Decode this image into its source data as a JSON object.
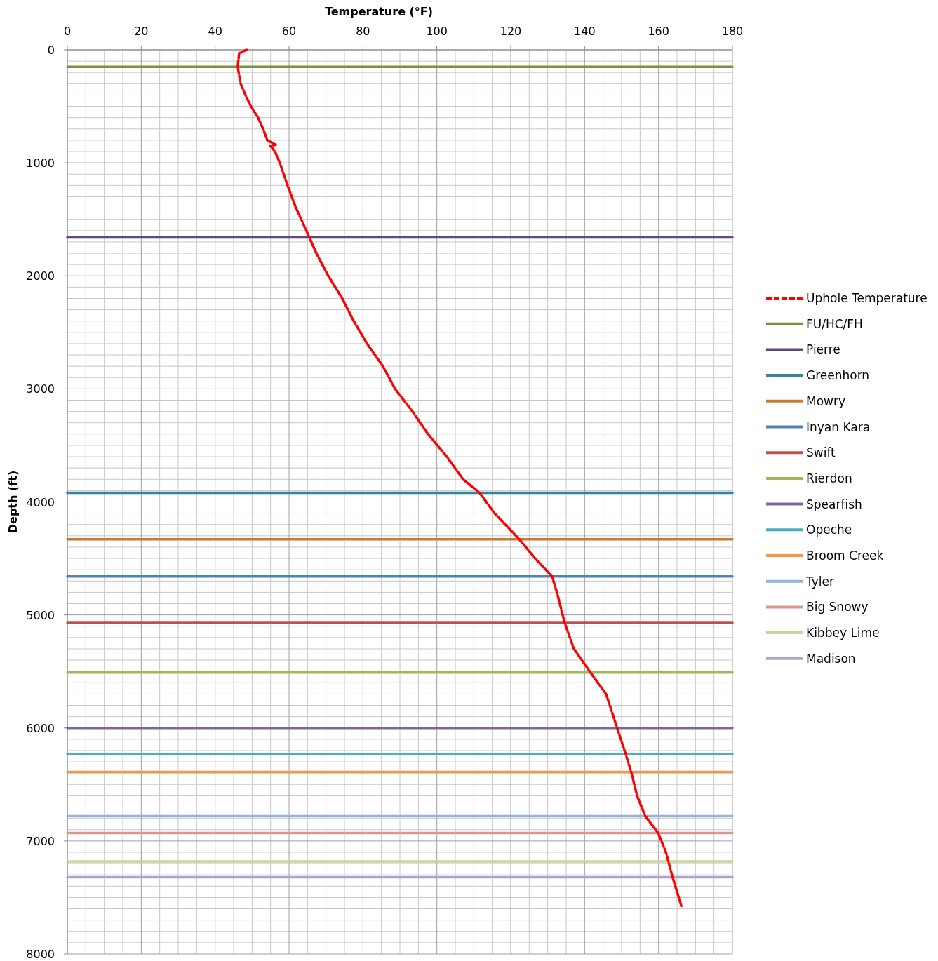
{
  "chart_data": {
    "type": "line",
    "xlabel": "Temperature (°F)",
    "ylabel": "Depth (ft)",
    "xlim": [
      0,
      180
    ],
    "xticks": [
      0,
      20,
      40,
      60,
      80,
      100,
      120,
      140,
      160,
      180
    ],
    "ylim": [
      8000,
      0
    ],
    "yticks": [
      0,
      1000,
      2000,
      3000,
      4000,
      5000,
      6000,
      7000,
      8000
    ],
    "grid": true,
    "legend": "right",
    "marker": "none",
    "series": [
      {
        "name": "Uphole Temperature",
        "color": "#ff0000",
        "line_style": "dashed",
        "x": [
          48.5,
          46.5,
          46.1,
          46.9,
          48.2,
          49.7,
          51.6,
          53,
          54.1,
          56.4,
          55,
          56.2,
          57.5,
          59.6,
          61.9,
          65.5,
          67.4,
          70.6,
          74.4,
          77.5,
          81.1,
          85.4,
          88.7,
          93.4,
          97.6,
          102.7,
          107.1,
          111.6,
          115.6,
          122.3,
          126.6,
          131.2,
          132.5,
          134.6,
          137.1,
          141.6,
          145.8,
          148.8,
          151.1,
          152.6,
          154.2,
          156.4,
          159.9,
          162,
          163.8,
          166.3
        ],
        "values": [
          0,
          30,
          150,
          300,
          400,
          500,
          600,
          700,
          800,
          840,
          850,
          900,
          1000,
          1200,
          1400,
          1660,
          1800,
          2000,
          2200,
          2400,
          2600,
          2800,
          3000,
          3200,
          3400,
          3600,
          3800,
          3920,
          4100,
          4330,
          4500,
          4660,
          4800,
          5070,
          5300,
          5510,
          5700,
          6000,
          6230,
          6390,
          6600,
          6780,
          6930,
          7100,
          7320,
          7590
        ]
      },
      {
        "name": "FU/HC/FH",
        "color": "#77933c",
        "x": [
          0,
          180
        ],
        "values": [
          150,
          150
        ]
      },
      {
        "name": "Pierre",
        "color": "#604a7b",
        "x": [
          0,
          180
        ],
        "values": [
          1660,
          1660
        ]
      },
      {
        "name": "Greenhorn",
        "color": "#31859c",
        "x": [
          0,
          180
        ],
        "values": [
          3920,
          3920
        ]
      },
      {
        "name": "Mowry",
        "color": "#c77b30",
        "x": [
          0,
          180
        ],
        "values": [
          4330,
          4330
        ]
      },
      {
        "name": "Inyan Kara",
        "color": "#4f81bd",
        "x": [
          0,
          180
        ],
        "values": [
          4660,
          4660
        ]
      },
      {
        "name": "Swift",
        "color": "#c0504d",
        "x": [
          0,
          180
        ],
        "values": [
          5070,
          5070
        ]
      },
      {
        "name": "Rierdon",
        "color": "#9bbb59",
        "x": [
          0,
          180
        ],
        "values": [
          5510,
          5510
        ]
      },
      {
        "name": "Spearfish",
        "color": "#8064a2",
        "x": [
          0,
          180
        ],
        "values": [
          6000,
          6000
        ]
      },
      {
        "name": "Opeche",
        "color": "#4bacc6",
        "x": [
          0,
          180
        ],
        "values": [
          6230,
          6230
        ]
      },
      {
        "name": "Broom Creek",
        "color": "#f79646",
        "x": [
          0,
          180
        ],
        "values": [
          6390,
          6390
        ]
      },
      {
        "name": "Tyler",
        "color": "#95b3d7",
        "x": [
          0,
          180
        ],
        "values": [
          6780,
          6780
        ]
      },
      {
        "name": "Big Snowy",
        "color": "#d99694",
        "x": [
          0,
          180
        ],
        "values": [
          6930,
          6930
        ]
      },
      {
        "name": "Kibbey Lime",
        "color": "#c3d69b",
        "x": [
          0,
          180
        ],
        "values": [
          7180,
          7180
        ]
      },
      {
        "name": "Madison",
        "color": "#b3a2c7",
        "x": [
          0,
          180
        ],
        "values": [
          7320,
          7320
        ]
      }
    ]
  }
}
